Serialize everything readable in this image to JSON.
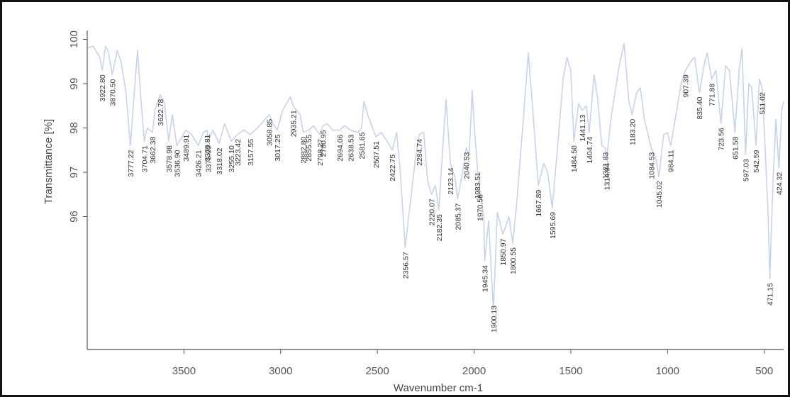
{
  "chart_data": {
    "type": "line",
    "xlabel": "Wavenumber cm-1",
    "ylabel": "Transmittance [%]",
    "xlim": [
      4000,
      400
    ],
    "ylim": [
      93,
      100.2
    ],
    "x_reversed": true,
    "grid": false,
    "line_color": "#c9d3e8",
    "axis_color": "#555555",
    "xticks": [
      3500,
      3000,
      2500,
      2000,
      1500,
      1000,
      500
    ],
    "yticks": [
      96,
      97,
      98,
      99,
      100
    ],
    "series": [
      {
        "points": [
          [
            4000,
            99.8
          ],
          [
            3970,
            99.85
          ],
          [
            3935,
            99.6
          ],
          [
            3922.8,
            99.3
          ],
          [
            3905,
            99.85
          ],
          [
            3890,
            99.7
          ],
          [
            3870.5,
            99.2
          ],
          [
            3845,
            99.75
          ],
          [
            3825,
            99.5
          ],
          [
            3800,
            98.8
          ],
          [
            3777.22,
            97.6
          ],
          [
            3755,
            98.9
          ],
          [
            3740,
            99.75
          ],
          [
            3720,
            98.5
          ],
          [
            3704.71,
            97.7
          ],
          [
            3690,
            98.0
          ],
          [
            3662.38,
            97.9
          ],
          [
            3650,
            98.4
          ],
          [
            3622.78,
            98.75
          ],
          [
            3600,
            98.55
          ],
          [
            3578.98,
            97.7
          ],
          [
            3560,
            98.3
          ],
          [
            3536.9,
            97.6
          ],
          [
            3510,
            97.8
          ],
          [
            3489.91,
            97.95
          ],
          [
            3460,
            97.85
          ],
          [
            3426.21,
            97.6
          ],
          [
            3400,
            97.9
          ],
          [
            3379.81,
            97.95
          ],
          [
            3375,
            97.7
          ],
          [
            3350,
            97.95
          ],
          [
            3318.02,
            97.65
          ],
          [
            3290,
            98.1
          ],
          [
            3255.1,
            97.7
          ],
          [
            3223.42,
            97.85
          ],
          [
            3190,
            97.95
          ],
          [
            3157.55,
            97.85
          ],
          [
            3120,
            98.0
          ],
          [
            3080,
            98.2
          ],
          [
            3058.85,
            98.3
          ],
          [
            3040,
            98.1
          ],
          [
            3017.25,
            97.95
          ],
          [
            2990,
            98.4
          ],
          [
            2950,
            98.7
          ],
          [
            2935.21,
            98.5
          ],
          [
            2900,
            98.3
          ],
          [
            2882.8,
            97.9
          ],
          [
            2855.55,
            97.95
          ],
          [
            2830,
            98.05
          ],
          [
            2798.27,
            97.85
          ],
          [
            2780.95,
            98.05
          ],
          [
            2760,
            98.1
          ],
          [
            2730,
            97.95
          ],
          [
            2694.06,
            97.95
          ],
          [
            2670,
            98.05
          ],
          [
            2638.53,
            97.95
          ],
          [
            2600,
            97.9
          ],
          [
            2581.65,
            98.0
          ],
          [
            2570,
            98.6
          ],
          [
            2550,
            98.3
          ],
          [
            2507.51,
            97.8
          ],
          [
            2480,
            97.9
          ],
          [
            2450,
            97.7
          ],
          [
            2422.75,
            97.5
          ],
          [
            2400,
            97.9
          ],
          [
            2380,
            96.9
          ],
          [
            2356.57,
            95.3
          ],
          [
            2330,
            96.3
          ],
          [
            2305,
            97.25
          ],
          [
            2284.74,
            97.85
          ],
          [
            2260,
            97.9
          ],
          [
            2240,
            96.8
          ],
          [
            2220.07,
            96.5
          ],
          [
            2200,
            96.7
          ],
          [
            2182.35,
            96.15
          ],
          [
            2160,
            97.7
          ],
          [
            2145,
            98.65
          ],
          [
            2123.14,
            97.2
          ],
          [
            2100,
            96.9
          ],
          [
            2085.37,
            96.4
          ],
          [
            2060,
            97.0
          ],
          [
            2040.53,
            97.55
          ],
          [
            2025,
            97.4
          ],
          [
            2010,
            98.85
          ],
          [
            2000,
            98.1
          ],
          [
            1983.51,
            97.1
          ],
          [
            1970.58,
            96.6
          ],
          [
            1950,
            96.0
          ],
          [
            1945.34,
            95.0
          ],
          [
            1925,
            95.9
          ],
          [
            1900.13,
            93.9
          ],
          [
            1880,
            96.1
          ],
          [
            1850.97,
            95.6
          ],
          [
            1820,
            96.0
          ],
          [
            1800.55,
            95.4
          ],
          [
            1780,
            96.3
          ],
          [
            1740,
            98.5
          ],
          [
            1720,
            99.7
          ],
          [
            1700,
            98.6
          ],
          [
            1667.89,
            96.7
          ],
          [
            1640,
            97.2
          ],
          [
            1620,
            97.0
          ],
          [
            1595.69,
            96.2
          ],
          [
            1570,
            97.5
          ],
          [
            1540,
            99.1
          ],
          [
            1520,
            99.6
          ],
          [
            1500,
            99.3
          ],
          [
            1484.5,
            97.7
          ],
          [
            1460,
            98.55
          ],
          [
            1441.13,
            98.4
          ],
          [
            1420,
            98.5
          ],
          [
            1404.74,
            97.9
          ],
          [
            1380,
            99.2
          ],
          [
            1360,
            98.6
          ],
          [
            1340,
            97.6
          ],
          [
            1321.83,
            97.55
          ],
          [
            1314.94,
            97.3
          ],
          [
            1290,
            98.3
          ],
          [
            1250,
            99.4
          ],
          [
            1225,
            99.9
          ],
          [
            1200,
            98.6
          ],
          [
            1183.2,
            98.3
          ],
          [
            1160,
            98.8
          ],
          [
            1140,
            98.9
          ],
          [
            1120,
            98.2
          ],
          [
            1084.53,
            97.55
          ],
          [
            1060,
            97.3
          ],
          [
            1045.02,
            96.9
          ],
          [
            1020,
            97.85
          ],
          [
            1000,
            97.9
          ],
          [
            984.11,
            97.6
          ],
          [
            960,
            98.2
          ],
          [
            930,
            99.0
          ],
          [
            907.39,
            99.3
          ],
          [
            880,
            99.5
          ],
          [
            860,
            99.6
          ],
          [
            835.4,
            98.8
          ],
          [
            810,
            99.45
          ],
          [
            795,
            99.7
          ],
          [
            771.88,
            99.1
          ],
          [
            750,
            99.3
          ],
          [
            723.56,
            98.1
          ],
          [
            700,
            99.4
          ],
          [
            680,
            99.3
          ],
          [
            651.58,
            97.9
          ],
          [
            630,
            99.3
          ],
          [
            615,
            99.8
          ],
          [
            597.03,
            97.4
          ],
          [
            580,
            99.0
          ],
          [
            565,
            98.9
          ],
          [
            542.59,
            97.6
          ],
          [
            525,
            99.1
          ],
          [
            511.02,
            98.9
          ],
          [
            495,
            97.5
          ],
          [
            480,
            96.0
          ],
          [
            471.15,
            94.6
          ],
          [
            455,
            96.8
          ],
          [
            440,
            98.2
          ],
          [
            424.32,
            97.1
          ],
          [
            410,
            98.4
          ],
          [
            400,
            98.6
          ]
        ]
      }
    ],
    "peak_labels": [
      "3922.80",
      "3870.50",
      "3777.22",
      "3704.71",
      "3662.38",
      "3622.78",
      "3578.98",
      "3536.90",
      "3489.91",
      "3426.21",
      "3379.81",
      "3375.00",
      "3318.02",
      "3255.10",
      "3223.42",
      "3157.55",
      "3058.85",
      "3017.25",
      "2935.21",
      "2882.80",
      "2855.55",
      "2798.27",
      "2780.95",
      "2694.06",
      "2638.53",
      "2581.65",
      "2507.51",
      "2422.75",
      "2356.57",
      "2284.74",
      "2220.07",
      "2182.35",
      "2123.14",
      "2085.37",
      "2040.53",
      "1983.51",
      "1970.58",
      "1945.34",
      "1900.13",
      "1850.97",
      "1800.55",
      "1667.89",
      "1595.69",
      "1484.50",
      "1441.13",
      "1404.74",
      "1321.83",
      "1314.94",
      "1183.20",
      "1084.53",
      "1045.02",
      "984.11",
      "907.39",
      "835.40",
      "771.88",
      "723.56",
      "651.58",
      "597.03",
      "542.59",
      "511.02",
      "471.15",
      "424.32"
    ]
  }
}
